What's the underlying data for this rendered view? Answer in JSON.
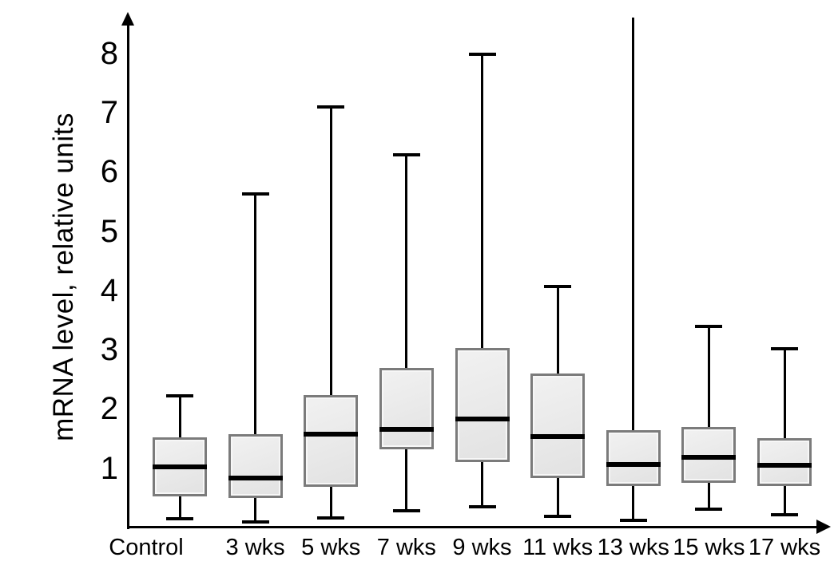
{
  "chart_data": {
    "type": "box",
    "title": "",
    "ylabel": "mRNA level, relative units",
    "xlabel": "",
    "yticks": [
      1,
      2,
      3,
      4,
      5,
      6,
      7,
      8
    ],
    "ylim": [
      0,
      8.65
    ],
    "grid": false,
    "legend": false,
    "categories": [
      "Control",
      "3 wks",
      "5 wks",
      "7 wks",
      "9 wks",
      "11 wks",
      "13 wks",
      "15 wks",
      "17 wks"
    ],
    "boxes": [
      {
        "category": "Control",
        "whisker_low": 0.15,
        "q1": 0.52,
        "median": 1.02,
        "q3": 1.52,
        "whisker_high": 2.22,
        "whisker_top_capped": true
      },
      {
        "category": "3 wks",
        "whisker_low": 0.09,
        "q1": 0.5,
        "median": 0.83,
        "q3": 1.57,
        "whisker_high": 5.63,
        "whisker_top_capped": true
      },
      {
        "category": "5 wks",
        "whisker_low": 0.16,
        "q1": 0.68,
        "median": 1.57,
        "q3": 2.23,
        "whisker_high": 7.09,
        "whisker_top_capped": true
      },
      {
        "category": "7 wks",
        "whisker_low": 0.28,
        "q1": 1.32,
        "median": 1.66,
        "q3": 2.69,
        "whisker_high": 6.29,
        "whisker_top_capped": true
      },
      {
        "category": "9 wks",
        "whisker_low": 0.35,
        "q1": 1.1,
        "median": 1.83,
        "q3": 3.03,
        "whisker_high": 7.98,
        "whisker_top_capped": true
      },
      {
        "category": "11 wks",
        "whisker_low": 0.19,
        "q1": 0.83,
        "median": 1.53,
        "q3": 2.6,
        "whisker_high": 4.06,
        "whisker_top_capped": true
      },
      {
        "category": "13 wks",
        "whisker_low": 0.12,
        "q1": 0.7,
        "median": 1.06,
        "q3": 1.64,
        "whisker_high": 8.6,
        "whisker_top_capped": false
      },
      {
        "category": "15 wks",
        "whisker_low": 0.31,
        "q1": 0.75,
        "median": 1.18,
        "q3": 1.7,
        "whisker_high": 3.39,
        "whisker_top_capped": true
      },
      {
        "category": "17 wks",
        "whisker_low": 0.22,
        "q1": 0.7,
        "median": 1.05,
        "q3": 1.51,
        "whisker_high": 3.01,
        "whisker_top_capped": true
      }
    ],
    "colors": {
      "box_fill": "#e9e9e9",
      "box_border": "#7b7b7b",
      "median": "#000000",
      "whisker": "#000000",
      "axis": "#000000",
      "text": "#000000",
      "background": "#ffffff"
    }
  }
}
